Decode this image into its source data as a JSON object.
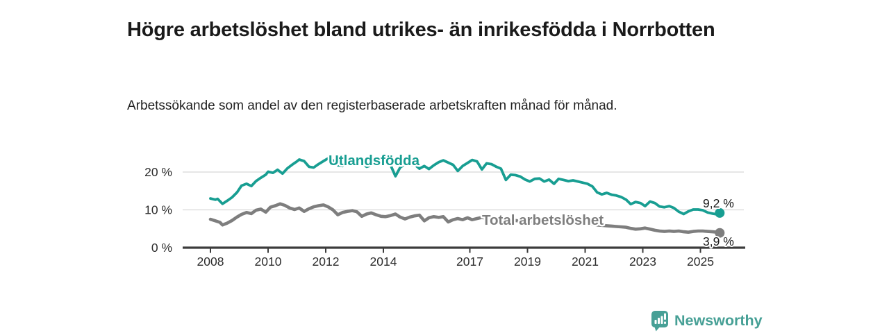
{
  "header": {
    "title": "Högre arbetslöshet bland utrikes- än inrikesfödda i Norrbotten",
    "subtitle": "Arbetssökande som andel av den registerbaserade arbetskraften månad för månad."
  },
  "chart_data": {
    "type": "line",
    "title": "Högre arbetslöshet bland utrikes- än inrikesfödda i Norrbotten",
    "subtitle": "Arbetssökande som andel av den registerbaserade arbetskraften månad för månad.",
    "x_unit": "year, monthly observations",
    "y_unit": "percent",
    "ylim": [
      0,
      25
    ],
    "xlim": [
      2007.9,
      2025.8
    ],
    "grid": "horizontal",
    "legend": "inline-series-labels",
    "yticks": [
      {
        "value": 0,
        "label": "0 %"
      },
      {
        "value": 10,
        "label": "10 %"
      },
      {
        "value": 20,
        "label": "20 %"
      }
    ],
    "xticks": [
      {
        "year": 2008,
        "label": "2008"
      },
      {
        "year": 2010,
        "label": "2010"
      },
      {
        "year": 2012,
        "label": "2012"
      },
      {
        "year": 2014,
        "label": "2014"
      },
      {
        "year": 2017,
        "label": "2017"
      },
      {
        "year": 2019,
        "label": "2019"
      },
      {
        "year": 2021,
        "label": "2021"
      },
      {
        "year": 2023,
        "label": "2023"
      },
      {
        "year": 2025,
        "label": "2025"
      }
    ],
    "series": [
      {
        "name": "Utlandsfödda",
        "color": "#189e92",
        "end_label": "9,2 %",
        "end_value": 9.2,
        "points": [
          [
            2008.0,
            13.0
          ],
          [
            2008.17,
            12.7
          ],
          [
            2008.25,
            12.9
          ],
          [
            2008.42,
            11.6
          ],
          [
            2008.58,
            12.4
          ],
          [
            2008.75,
            13.3
          ],
          [
            2008.92,
            14.6
          ],
          [
            2009.08,
            16.4
          ],
          [
            2009.25,
            16.9
          ],
          [
            2009.42,
            16.3
          ],
          [
            2009.58,
            17.6
          ],
          [
            2009.75,
            18.5
          ],
          [
            2009.92,
            19.3
          ],
          [
            2010.0,
            20.1
          ],
          [
            2010.17,
            19.8
          ],
          [
            2010.33,
            20.6
          ],
          [
            2010.5,
            19.6
          ],
          [
            2010.67,
            21.0
          ],
          [
            2010.83,
            21.9
          ],
          [
            2011.0,
            22.8
          ],
          [
            2011.08,
            23.3
          ],
          [
            2011.25,
            22.9
          ],
          [
            2011.42,
            21.4
          ],
          [
            2011.58,
            21.2
          ],
          [
            2011.75,
            22.1
          ],
          [
            2011.92,
            22.9
          ],
          [
            2012.08,
            23.6
          ],
          [
            2012.25,
            23.1
          ],
          [
            2012.42,
            21.8
          ],
          [
            2012.58,
            21.6
          ],
          [
            2012.75,
            22.4
          ],
          [
            2012.92,
            22.7
          ],
          [
            2013.08,
            23.1
          ],
          [
            2013.25,
            22.4
          ],
          [
            2013.42,
            21.4
          ],
          [
            2013.58,
            21.8
          ],
          [
            2013.75,
            22.1
          ],
          [
            2013.92,
            22.6
          ],
          [
            2014.08,
            22.2
          ],
          [
            2014.25,
            21.8
          ],
          [
            2014.42,
            18.9
          ],
          [
            2014.58,
            21.2
          ],
          [
            2014.75,
            22.1
          ],
          [
            2014.92,
            21.7
          ],
          [
            2015.08,
            22.0
          ],
          [
            2015.25,
            20.9
          ],
          [
            2015.42,
            21.6
          ],
          [
            2015.58,
            20.8
          ],
          [
            2015.75,
            21.8
          ],
          [
            2015.92,
            22.6
          ],
          [
            2016.08,
            23.1
          ],
          [
            2016.25,
            22.5
          ],
          [
            2016.42,
            21.9
          ],
          [
            2016.58,
            20.3
          ],
          [
            2016.75,
            21.6
          ],
          [
            2016.92,
            22.4
          ],
          [
            2017.08,
            23.2
          ],
          [
            2017.25,
            22.8
          ],
          [
            2017.42,
            20.7
          ],
          [
            2017.58,
            22.3
          ],
          [
            2017.75,
            22.1
          ],
          [
            2017.92,
            21.4
          ],
          [
            2018.08,
            20.9
          ],
          [
            2018.25,
            17.9
          ],
          [
            2018.42,
            19.3
          ],
          [
            2018.58,
            19.2
          ],
          [
            2018.75,
            18.8
          ],
          [
            2018.92,
            18.0
          ],
          [
            2019.08,
            17.5
          ],
          [
            2019.25,
            18.2
          ],
          [
            2019.42,
            18.3
          ],
          [
            2019.58,
            17.5
          ],
          [
            2019.75,
            18.0
          ],
          [
            2019.92,
            16.9
          ],
          [
            2020.08,
            18.2
          ],
          [
            2020.25,
            17.9
          ],
          [
            2020.42,
            17.6
          ],
          [
            2020.58,
            17.8
          ],
          [
            2020.75,
            17.5
          ],
          [
            2020.92,
            17.2
          ],
          [
            2021.08,
            16.9
          ],
          [
            2021.25,
            16.2
          ],
          [
            2021.42,
            14.6
          ],
          [
            2021.58,
            14.1
          ],
          [
            2021.75,
            14.5
          ],
          [
            2021.92,
            14.0
          ],
          [
            2022.08,
            13.8
          ],
          [
            2022.25,
            13.4
          ],
          [
            2022.42,
            12.7
          ],
          [
            2022.58,
            11.5
          ],
          [
            2022.75,
            12.1
          ],
          [
            2022.92,
            11.8
          ],
          [
            2023.08,
            11.0
          ],
          [
            2023.25,
            12.2
          ],
          [
            2023.42,
            11.8
          ],
          [
            2023.58,
            10.9
          ],
          [
            2023.75,
            10.7
          ],
          [
            2023.92,
            11.0
          ],
          [
            2024.08,
            10.5
          ],
          [
            2024.25,
            9.5
          ],
          [
            2024.42,
            8.9
          ],
          [
            2024.58,
            9.6
          ],
          [
            2024.75,
            10.1
          ],
          [
            2024.92,
            10.1
          ],
          [
            2025.08,
            9.9
          ],
          [
            2025.25,
            9.3
          ],
          [
            2025.42,
            9.0
          ],
          [
            2025.58,
            8.8
          ],
          [
            2025.67,
            9.2
          ]
        ]
      },
      {
        "name": "Total arbetslöshet",
        "color": "#7e7e7e",
        "end_label": "3,9 %",
        "end_value": 3.9,
        "points": [
          [
            2008.0,
            7.5
          ],
          [
            2008.17,
            7.1
          ],
          [
            2008.33,
            6.7
          ],
          [
            2008.42,
            6.0
          ],
          [
            2008.58,
            6.5
          ],
          [
            2008.75,
            7.2
          ],
          [
            2008.92,
            8.1
          ],
          [
            2009.08,
            8.8
          ],
          [
            2009.25,
            9.3
          ],
          [
            2009.42,
            9.0
          ],
          [
            2009.58,
            9.9
          ],
          [
            2009.75,
            10.2
          ],
          [
            2009.92,
            9.4
          ],
          [
            2010.08,
            10.7
          ],
          [
            2010.25,
            11.1
          ],
          [
            2010.42,
            11.6
          ],
          [
            2010.58,
            11.2
          ],
          [
            2010.75,
            10.5
          ],
          [
            2010.92,
            10.1
          ],
          [
            2011.08,
            10.5
          ],
          [
            2011.25,
            9.6
          ],
          [
            2011.42,
            10.3
          ],
          [
            2011.58,
            10.8
          ],
          [
            2011.75,
            11.1
          ],
          [
            2011.92,
            11.3
          ],
          [
            2012.08,
            10.8
          ],
          [
            2012.25,
            10.0
          ],
          [
            2012.42,
            8.7
          ],
          [
            2012.58,
            9.3
          ],
          [
            2012.75,
            9.6
          ],
          [
            2012.92,
            9.8
          ],
          [
            2013.08,
            9.5
          ],
          [
            2013.25,
            8.3
          ],
          [
            2013.42,
            8.9
          ],
          [
            2013.58,
            9.2
          ],
          [
            2013.75,
            8.7
          ],
          [
            2013.92,
            8.3
          ],
          [
            2014.08,
            8.2
          ],
          [
            2014.25,
            8.5
          ],
          [
            2014.42,
            8.9
          ],
          [
            2014.58,
            8.1
          ],
          [
            2014.75,
            7.6
          ],
          [
            2014.92,
            8.1
          ],
          [
            2015.08,
            8.4
          ],
          [
            2015.25,
            8.6
          ],
          [
            2015.42,
            7.1
          ],
          [
            2015.58,
            7.9
          ],
          [
            2015.75,
            8.2
          ],
          [
            2015.92,
            8.0
          ],
          [
            2016.08,
            8.2
          ],
          [
            2016.25,
            6.8
          ],
          [
            2016.42,
            7.4
          ],
          [
            2016.58,
            7.7
          ],
          [
            2016.75,
            7.4
          ],
          [
            2016.92,
            7.9
          ],
          [
            2017.08,
            7.4
          ],
          [
            2017.25,
            7.7
          ],
          [
            2017.42,
            8.0
          ],
          [
            2017.58,
            7.7
          ],
          [
            2017.75,
            7.4
          ],
          [
            2017.92,
            7.1
          ],
          [
            2018.08,
            6.9
          ],
          [
            2018.25,
            7.2
          ],
          [
            2018.42,
            7.4
          ],
          [
            2018.58,
            7.2
          ],
          [
            2018.75,
            7.0
          ],
          [
            2018.92,
            6.8
          ],
          [
            2019.08,
            6.9
          ],
          [
            2019.25,
            7.1
          ],
          [
            2019.42,
            7.0
          ],
          [
            2019.58,
            6.8
          ],
          [
            2019.75,
            6.6
          ],
          [
            2019.92,
            6.5
          ],
          [
            2020.08,
            6.7
          ],
          [
            2020.25,
            6.8
          ],
          [
            2020.42,
            6.6
          ],
          [
            2020.58,
            6.4
          ],
          [
            2020.75,
            6.3
          ],
          [
            2020.92,
            6.2
          ],
          [
            2021.08,
            6.3
          ],
          [
            2021.25,
            6.2
          ],
          [
            2021.42,
            6.0
          ],
          [
            2021.58,
            5.9
          ],
          [
            2021.75,
            5.8
          ],
          [
            2021.92,
            5.7
          ],
          [
            2022.08,
            5.6
          ],
          [
            2022.25,
            5.5
          ],
          [
            2022.42,
            5.4
          ],
          [
            2022.58,
            5.1
          ],
          [
            2022.75,
            4.9
          ],
          [
            2022.92,
            5.0
          ],
          [
            2023.08,
            5.2
          ],
          [
            2023.25,
            4.9
          ],
          [
            2023.42,
            4.6
          ],
          [
            2023.58,
            4.4
          ],
          [
            2023.75,
            4.3
          ],
          [
            2023.92,
            4.4
          ],
          [
            2024.08,
            4.3
          ],
          [
            2024.25,
            4.4
          ],
          [
            2024.42,
            4.2
          ],
          [
            2024.58,
            4.1
          ],
          [
            2024.75,
            4.3
          ],
          [
            2024.92,
            4.4
          ],
          [
            2025.08,
            4.4
          ],
          [
            2025.25,
            4.3
          ],
          [
            2025.42,
            4.2
          ],
          [
            2025.58,
            4.1
          ],
          [
            2025.67,
            3.9
          ]
        ]
      }
    ],
    "colors": {
      "utlandsfodda": "#189e92",
      "total": "#7e7e7e",
      "grid": "#d8d8d8",
      "axis": "#3c3c3c",
      "text": "#2d2d2d"
    }
  },
  "branding": {
    "logo_text": "Newsworthy",
    "logo_color": "#47a096",
    "logo_icon": "bar-chart-speech-bubble-icon"
  }
}
